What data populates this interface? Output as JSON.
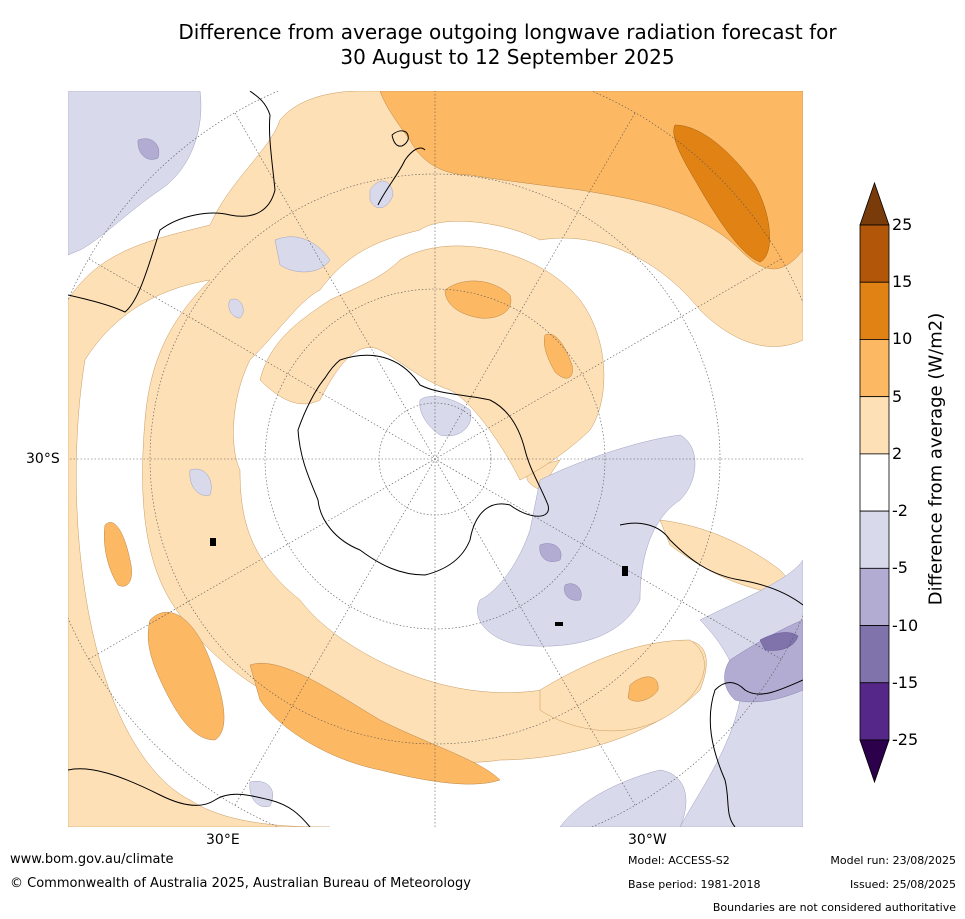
{
  "title_line1": "Difference from average outgoing longwave radiation forecast for",
  "title_line2": "30 August to 12 September 2025",
  "colorbar": {
    "label": "Difference from average (W/m2)",
    "tick_labels": [
      "25",
      "15",
      "10",
      "5",
      "2",
      "-2",
      "-5",
      "-10",
      "-15",
      "-25"
    ],
    "colors": [
      "#7a3b0a",
      "#b2560a",
      "#e08214",
      "#fdb863",
      "#fee0b6",
      "#ffffff",
      "#d8daeb",
      "#b2abd2",
      "#8073ac",
      "#542788",
      "#2d004b"
    ]
  },
  "axis_labels": {
    "lat_30s": "30°S",
    "lon_30e": "30°E",
    "lon_30w": "30°W"
  },
  "footer": {
    "url": "www.bom.gov.au/climate",
    "copyright": "© Commonwealth of Australia 2025, Australian Bureau of Meteorology",
    "model": "Model: ACCESS-S2",
    "base_period": "Base period: 1981-2018",
    "model_run": "Model run: 23/08/2025",
    "issued": "Issued: 25/08/2025",
    "disclaimer": "Boundaries are not considered authoritative"
  }
}
